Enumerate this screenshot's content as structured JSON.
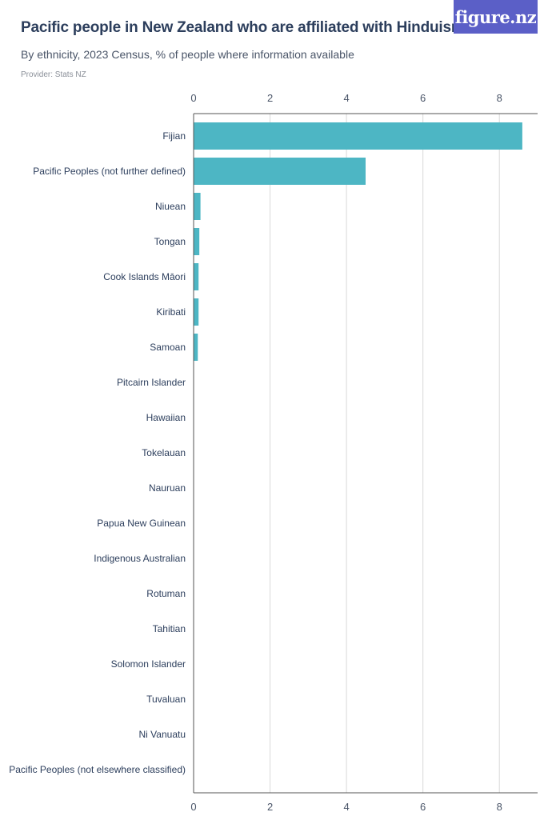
{
  "header": {
    "title": "Pacific people in New Zealand who are affiliated with Hinduism",
    "subtitle": "By ethnicity, 2023 Census, % of people where information available",
    "provider": "Provider: Stats NZ",
    "logo_text": "figure.nz"
  },
  "colors": {
    "bar": "#4db6c4",
    "grid": "#d9d9d9",
    "axis": "#555555",
    "logo_bg": "#5b5fc7"
  },
  "chart_data": {
    "type": "bar",
    "orientation": "horizontal",
    "title": "Pacific people in New Zealand who are affiliated with Hinduism",
    "subtitle": "By ethnicity, 2023 Census, % of people where information available",
    "xlim": [
      0,
      9
    ],
    "xticks": [
      0,
      2,
      4,
      6,
      8
    ],
    "grid": true,
    "categories": [
      "Fijian",
      "Pacific Peoples (not further defined)",
      "Niuean",
      "Tongan",
      "Cook Islands Māori",
      "Kiribati",
      "Samoan",
      "Pitcairn Islander",
      "Hawaiian",
      "Tokelauan",
      "Nauruan",
      "Papua New Guinean",
      "Indigenous Australian",
      "Rotuman",
      "Tahitian",
      "Solomon Islander",
      "Tuvaluan",
      "Ni Vanuatu",
      "Pacific Peoples (not elsewhere classified)"
    ],
    "values": [
      8.6,
      4.5,
      0.18,
      0.15,
      0.13,
      0.13,
      0.11,
      0,
      0,
      0,
      0,
      0,
      0,
      0,
      0,
      0,
      0,
      0,
      0
    ]
  }
}
